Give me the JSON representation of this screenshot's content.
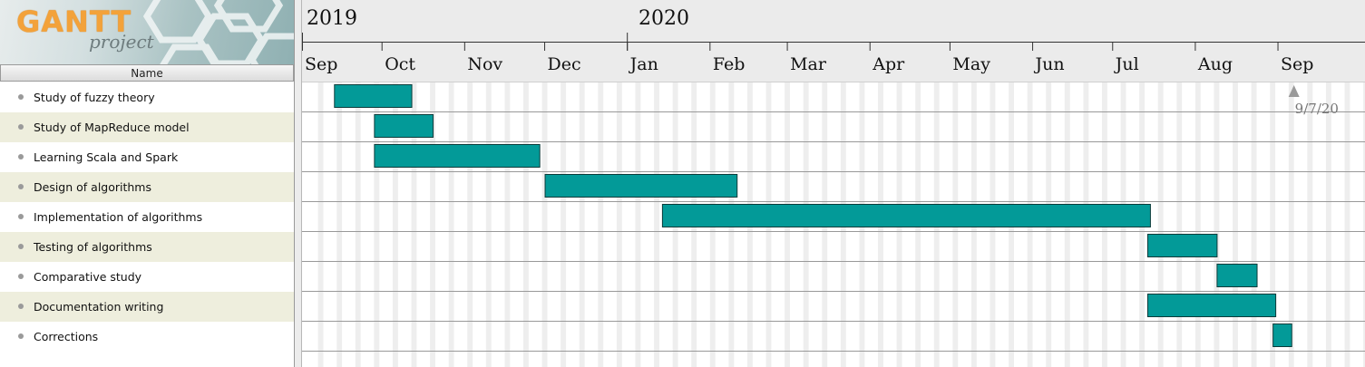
{
  "logo": {
    "main": "GANTT",
    "sub": "project"
  },
  "table": {
    "column_header": "Name"
  },
  "tasks": [
    {
      "name": "Study of fuzzy theory",
      "start": "2019-09-13",
      "end": "2019-10-12"
    },
    {
      "name": "Study of MapReduce model",
      "start": "2019-09-28",
      "end": "2019-10-20"
    },
    {
      "name": "Learning Scala and Spark",
      "start": "2019-09-28",
      "end": "2019-11-29"
    },
    {
      "name": "Design of algorithms",
      "start": "2019-12-01",
      "end": "2020-02-11"
    },
    {
      "name": "Implementation of algorithms",
      "start": "2020-01-14",
      "end": "2020-07-15"
    },
    {
      "name": "Testing of algorithms",
      "start": "2020-07-14",
      "end": "2020-08-09"
    },
    {
      "name": "Comparative study",
      "start": "2020-08-09",
      "end": "2020-08-24"
    },
    {
      "name": "Documentation writing",
      "start": "2020-07-14",
      "end": "2020-08-31"
    },
    {
      "name": "Corrections",
      "start": "2020-08-30",
      "end": "2020-09-06"
    }
  ],
  "timeline": {
    "years": [
      {
        "label": "2019"
      },
      {
        "label": "2020"
      }
    ],
    "months": [
      "Sep",
      "Oct",
      "Nov",
      "Dec",
      "Jan",
      "Feb",
      "Mar",
      "Apr",
      "May",
      "Jun",
      "Jul",
      "Aug",
      "Sep"
    ],
    "today_label": "9/7/20",
    "today_date": "2020-09-07"
  },
  "colors": {
    "bar_fill": "#039a98",
    "bar_stroke": "#0b3b3a",
    "row_alt": "#eeeedd",
    "weekend_stripe": "#eeeeee",
    "row_line": "#999999"
  }
}
